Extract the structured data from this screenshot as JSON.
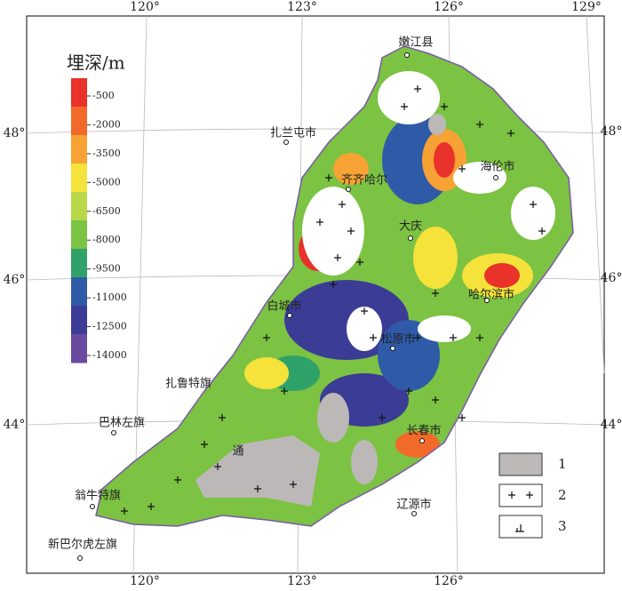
{
  "title": "埋深/m",
  "colorbar": {
    "ticks": [
      -500,
      -2000,
      -3500,
      -5000,
      -6500,
      -8000,
      -9500,
      -11000,
      -12500,
      -14000
    ],
    "colors": [
      "#e8322a",
      "#f26a2a",
      "#f7a234",
      "#f5e23a",
      "#b8d84a",
      "#7cc243",
      "#2fa26a",
      "#2f5aa8",
      "#3b3c96",
      "#6a4aa0"
    ]
  },
  "graticule": {
    "top": [
      "120°",
      "123°",
      "126°",
      "129°"
    ],
    "bottom": [
      "120°",
      "123°",
      "126°"
    ],
    "left": [
      "48°",
      "46°",
      "44°"
    ],
    "right": [
      "48°",
      "46°",
      "44°"
    ]
  },
  "places": [
    "嫩江县",
    "扎兰屯市",
    "齐齐哈尔",
    "海伦市",
    "大庆",
    "哈尔滨市",
    "白城市",
    "松原市",
    "扎鲁特旗",
    "巴林左旗",
    "长春市",
    "通",
    "翁牛特旗",
    "辽源市",
    "新巴尔虎左旗"
  ],
  "legend": [
    "1",
    "2",
    "3"
  ]
}
